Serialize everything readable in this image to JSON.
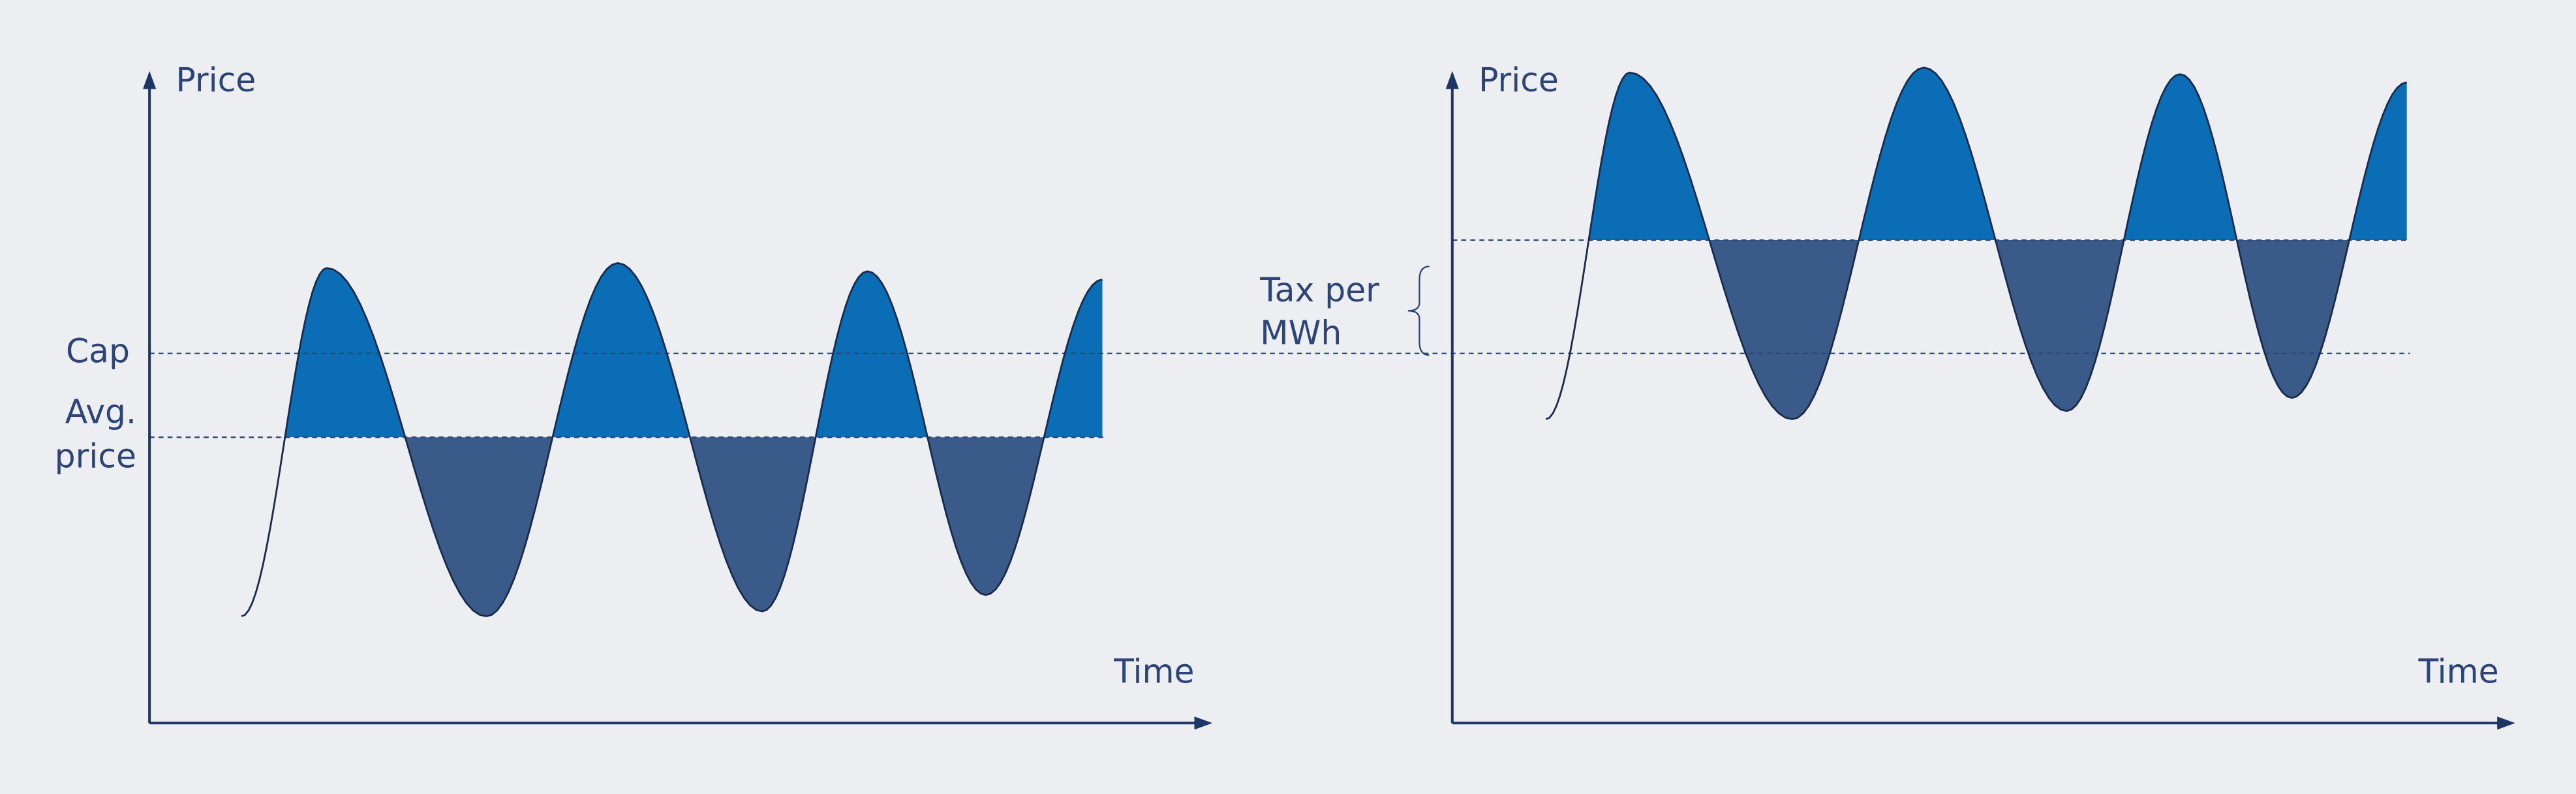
{
  "left_chart": {
    "y_axis_label": "Price",
    "x_axis_label": "Time",
    "cap_label": "Cap",
    "avg_price_label": [
      "Avg.",
      "price"
    ]
  },
  "right_chart": {
    "y_axis_label": "Price",
    "x_axis_label": "Time",
    "tax_label": [
      "Tax per",
      "MWh"
    ]
  }
}
